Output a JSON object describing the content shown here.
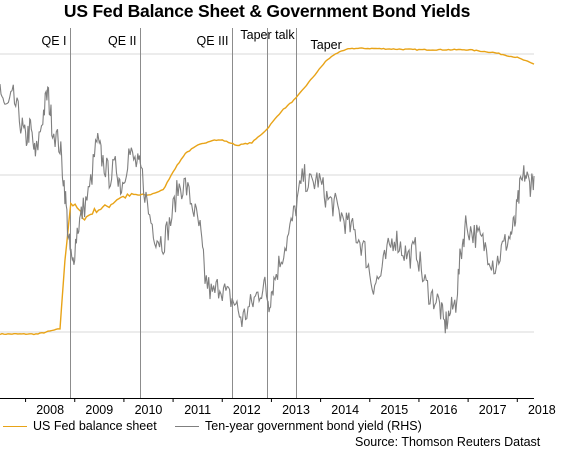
{
  "title": "US Fed Balance Sheet & Government Bond Yields",
  "colors": {
    "fed": "#E8A317",
    "yield": "#7f7f7f",
    "vline": "#8c8c8c",
    "grid": "#d9d9d9"
  },
  "legend": {
    "fed": "US Fed balance sheet",
    "yield": "Ten-year government bond yield (RHS)"
  },
  "source": "Source: Thomson Reuters Datast",
  "chart_data": {
    "type": "line",
    "title": "US Fed Balance Sheet & Government Bond Yields",
    "xlabel": "",
    "ylabel": "",
    "x_ticks": [
      "2008",
      "2009",
      "2010",
      "2011",
      "2012",
      "2013",
      "2014",
      "2015",
      "2016",
      "2017",
      "2018"
    ],
    "x_range": [
      2007.48,
      2018.34
    ],
    "grid": "horizontal",
    "legend_position": "bottom",
    "annotations": [
      {
        "label": "QE I",
        "x": 2008.9
      },
      {
        "label": "QE II",
        "x": 2010.32
      },
      {
        "label": "QE III",
        "x": 2012.2
      },
      {
        "label": "Taper talk",
        "x": 2012.9
      },
      {
        "label": "Taper",
        "x": 2013.5
      }
    ],
    "series": [
      {
        "name": "US Fed balance sheet",
        "axis": "left",
        "relative_scale": [
          0,
          1
        ],
        "points": [
          [
            2007.48,
            0.0
          ],
          [
            2008.25,
            0.0
          ],
          [
            2008.7,
            0.02
          ],
          [
            2008.8,
            0.28
          ],
          [
            2008.92,
            0.5
          ],
          [
            2009.05,
            0.48
          ],
          [
            2009.2,
            0.44
          ],
          [
            2009.4,
            0.47
          ],
          [
            2009.7,
            0.49
          ],
          [
            2009.9,
            0.52
          ],
          [
            2010.2,
            0.53
          ],
          [
            2010.5,
            0.53
          ],
          [
            2010.8,
            0.55
          ],
          [
            2011.0,
            0.62
          ],
          [
            2011.25,
            0.69
          ],
          [
            2011.5,
            0.72
          ],
          [
            2011.8,
            0.74
          ],
          [
            2012.0,
            0.74
          ],
          [
            2012.3,
            0.72
          ],
          [
            2012.6,
            0.73
          ],
          [
            2012.9,
            0.78
          ],
          [
            2013.2,
            0.85
          ],
          [
            2013.5,
            0.9
          ],
          [
            2013.8,
            0.97
          ],
          [
            2014.1,
            1.04
          ],
          [
            2014.3,
            1.07
          ],
          [
            2014.6,
            1.09
          ],
          [
            2015.0,
            1.09
          ],
          [
            2016.0,
            1.085
          ],
          [
            2017.0,
            1.085
          ],
          [
            2017.5,
            1.075
          ],
          [
            2018.0,
            1.055
          ],
          [
            2018.34,
            1.03
          ]
        ]
      },
      {
        "name": "Ten-year government bond yield (RHS)",
        "axis": "right",
        "relative_scale": [
          0,
          1
        ],
        "points": [
          [
            2007.48,
            0.9
          ],
          [
            2007.6,
            0.82
          ],
          [
            2007.75,
            0.86
          ],
          [
            2007.9,
            0.78
          ],
          [
            2008.0,
            0.72
          ],
          [
            2008.1,
            0.76
          ],
          [
            2008.2,
            0.66
          ],
          [
            2008.35,
            0.8
          ],
          [
            2008.45,
            0.88
          ],
          [
            2008.55,
            0.76
          ],
          [
            2008.7,
            0.7
          ],
          [
            2008.8,
            0.55
          ],
          [
            2008.88,
            0.38
          ],
          [
            2008.95,
            0.3
          ],
          [
            2009.05,
            0.42
          ],
          [
            2009.15,
            0.48
          ],
          [
            2009.3,
            0.55
          ],
          [
            2009.45,
            0.72
          ],
          [
            2009.55,
            0.66
          ],
          [
            2009.7,
            0.6
          ],
          [
            2009.85,
            0.63
          ],
          [
            2009.95,
            0.56
          ],
          [
            2010.1,
            0.68
          ],
          [
            2010.25,
            0.64
          ],
          [
            2010.35,
            0.62
          ],
          [
            2010.5,
            0.48
          ],
          [
            2010.65,
            0.4
          ],
          [
            2010.8,
            0.38
          ],
          [
            2010.95,
            0.45
          ],
          [
            2011.1,
            0.56
          ],
          [
            2011.25,
            0.57
          ],
          [
            2011.4,
            0.5
          ],
          [
            2011.55,
            0.42
          ],
          [
            2011.65,
            0.26
          ],
          [
            2011.8,
            0.2
          ],
          [
            2011.95,
            0.24
          ],
          [
            2012.1,
            0.2
          ],
          [
            2012.25,
            0.18
          ],
          [
            2012.4,
            0.12
          ],
          [
            2012.55,
            0.16
          ],
          [
            2012.7,
            0.2
          ],
          [
            2012.85,
            0.24
          ],
          [
            2012.95,
            0.18
          ],
          [
            2013.05,
            0.25
          ],
          [
            2013.2,
            0.33
          ],
          [
            2013.35,
            0.4
          ],
          [
            2013.5,
            0.5
          ],
          [
            2013.65,
            0.6
          ],
          [
            2013.8,
            0.57
          ],
          [
            2013.95,
            0.59
          ],
          [
            2014.15,
            0.52
          ],
          [
            2014.3,
            0.5
          ],
          [
            2014.45,
            0.46
          ],
          [
            2014.6,
            0.43
          ],
          [
            2014.75,
            0.4
          ],
          [
            2014.9,
            0.35
          ],
          [
            2015.05,
            0.24
          ],
          [
            2015.2,
            0.26
          ],
          [
            2015.35,
            0.34
          ],
          [
            2015.5,
            0.4
          ],
          [
            2015.65,
            0.36
          ],
          [
            2015.8,
            0.33
          ],
          [
            2015.95,
            0.36
          ],
          [
            2016.1,
            0.25
          ],
          [
            2016.25,
            0.2
          ],
          [
            2016.4,
            0.18
          ],
          [
            2016.52,
            0.1
          ],
          [
            2016.62,
            0.14
          ],
          [
            2016.75,
            0.18
          ],
          [
            2016.85,
            0.34
          ],
          [
            2016.95,
            0.44
          ],
          [
            2017.1,
            0.41
          ],
          [
            2017.25,
            0.39
          ],
          [
            2017.4,
            0.35
          ],
          [
            2017.55,
            0.3
          ],
          [
            2017.7,
            0.36
          ],
          [
            2017.85,
            0.4
          ],
          [
            2017.95,
            0.44
          ],
          [
            2018.05,
            0.55
          ],
          [
            2018.15,
            0.61
          ],
          [
            2018.25,
            0.57
          ],
          [
            2018.34,
            0.6
          ]
        ]
      }
    ]
  }
}
